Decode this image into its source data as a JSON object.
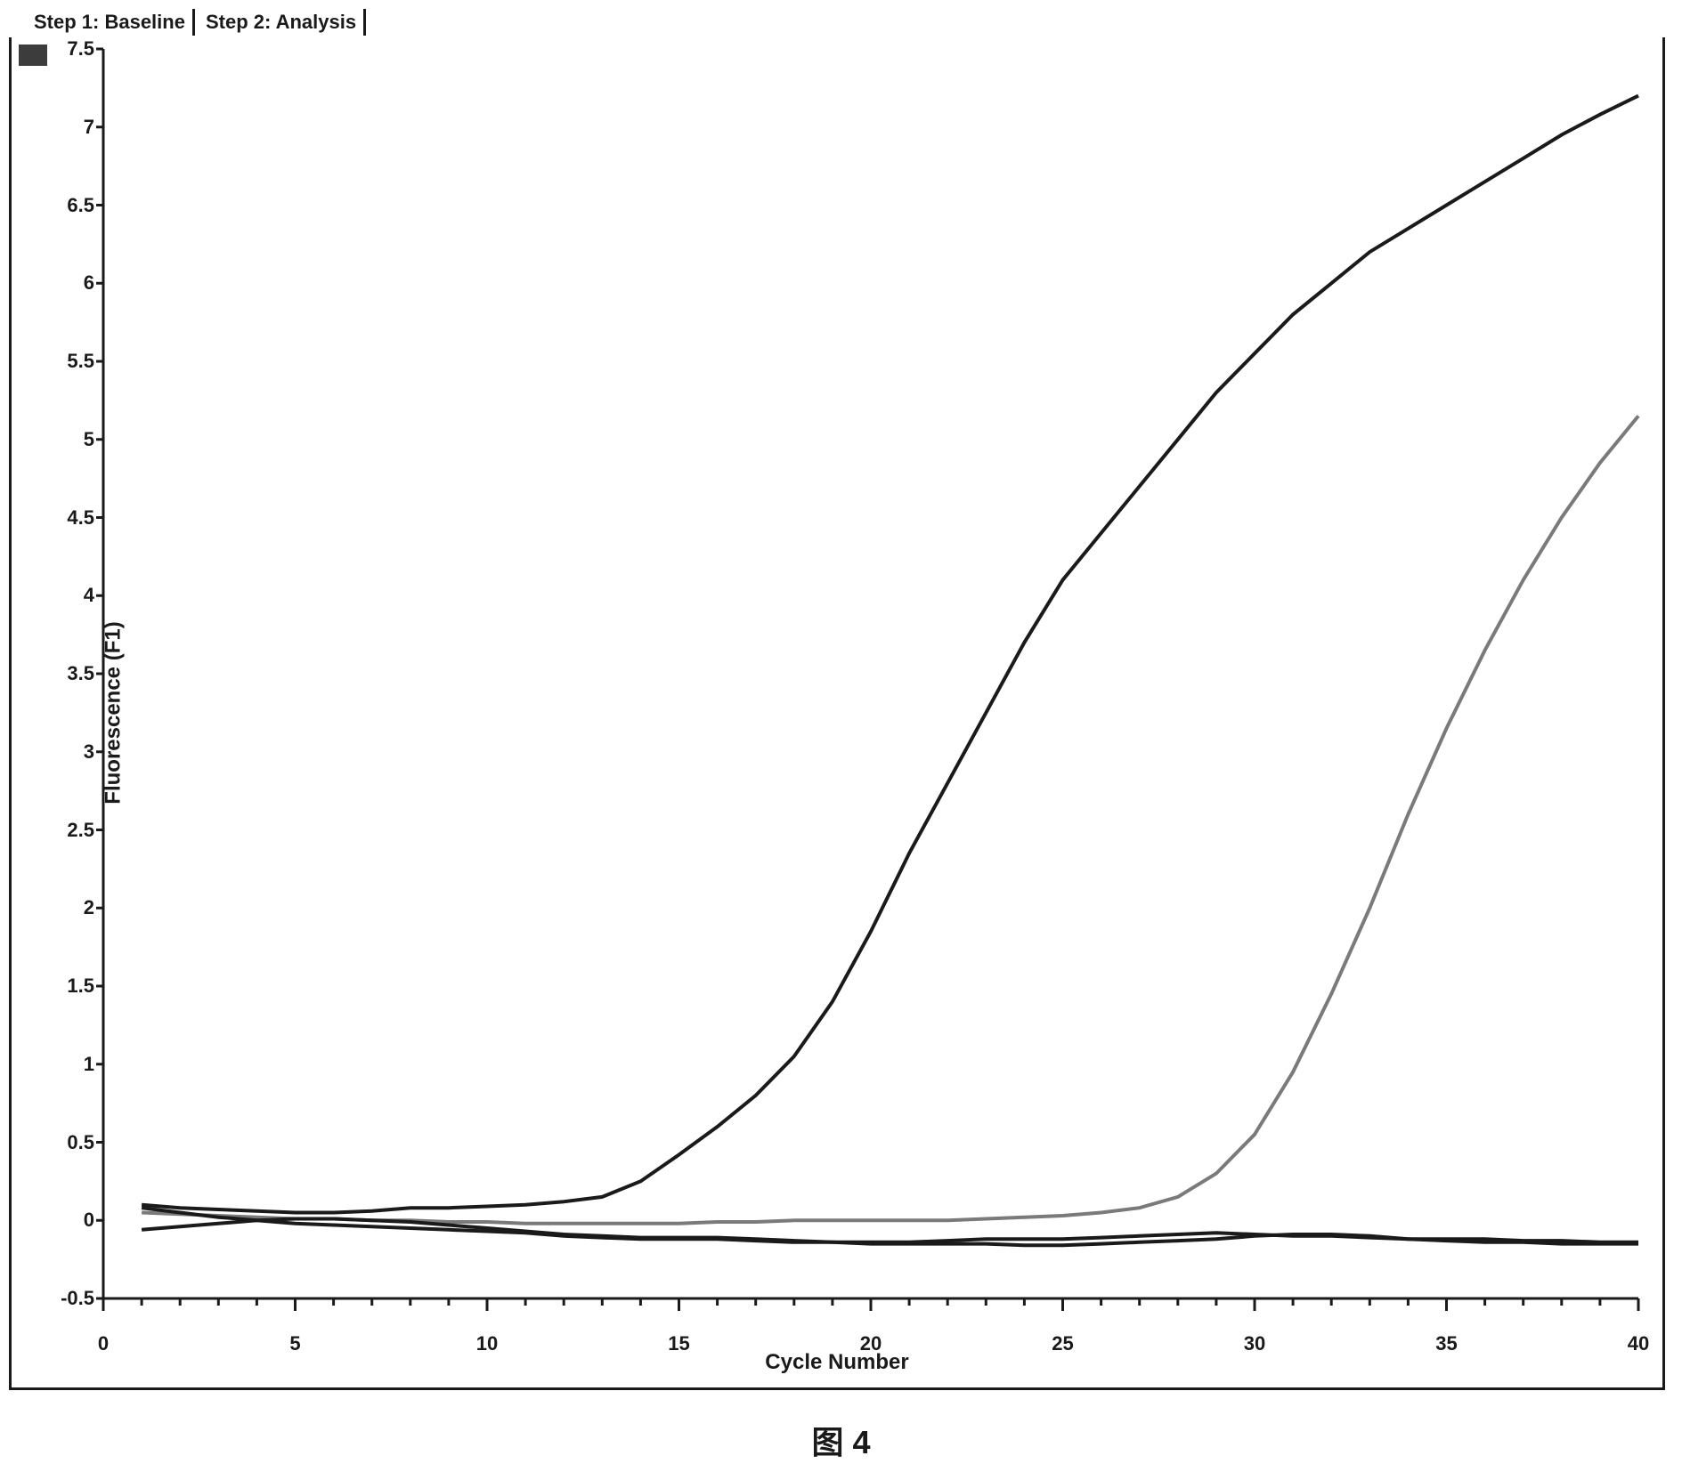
{
  "tabs": {
    "tab1": "Step 1: Baseline",
    "tab2": "Step 2: Analysis"
  },
  "chart": {
    "type": "line",
    "x_label": "Cycle Number",
    "y_label": "Fluorescence (F1)",
    "xlim": [
      0,
      40
    ],
    "ylim": [
      -0.5,
      7.5
    ],
    "x_ticks": [
      0,
      5,
      10,
      15,
      20,
      25,
      30,
      35,
      40
    ],
    "y_ticks": [
      -0.5,
      0,
      0.5,
      1,
      1.5,
      2,
      2.5,
      3,
      3.5,
      4,
      4.5,
      5,
      5.5,
      6,
      6.5,
      7,
      7.5
    ],
    "x_tick_labels": [
      "0",
      "5",
      "10",
      "15",
      "20",
      "25",
      "30",
      "35",
      "40"
    ],
    "y_tick_labels": [
      "-0.5",
      "0",
      "0.5",
      "1",
      "1.5",
      "2",
      "2.5",
      "3",
      "3.5",
      "4",
      "4.5",
      "5",
      "5.5",
      "6",
      "6.5",
      "7",
      "7.5"
    ],
    "x_minor_step": 1,
    "background_color": "#ffffff",
    "axis_color": "#1a1a1a",
    "axis_width": 3,
    "font_size_labels": 24,
    "font_size_ticks": 22,
    "series": [
      {
        "name": "curve1_high",
        "color": "#1a1a1a",
        "width": 4,
        "x": [
          1,
          2,
          3,
          4,
          5,
          6,
          7,
          8,
          9,
          10,
          11,
          12,
          13,
          14,
          15,
          16,
          17,
          18,
          19,
          20,
          21,
          22,
          23,
          24,
          25,
          26,
          27,
          28,
          29,
          30,
          31,
          32,
          33,
          34,
          35,
          36,
          37,
          38,
          39,
          40
        ],
        "y": [
          0.1,
          0.08,
          0.07,
          0.06,
          0.05,
          0.05,
          0.06,
          0.08,
          0.08,
          0.09,
          0.1,
          0.12,
          0.15,
          0.25,
          0.42,
          0.6,
          0.8,
          1.05,
          1.4,
          1.85,
          2.35,
          2.8,
          3.25,
          3.7,
          4.1,
          4.4,
          4.7,
          5.0,
          5.3,
          5.55,
          5.8,
          6.0,
          6.2,
          6.35,
          6.5,
          6.65,
          6.8,
          6.95,
          7.08,
          7.2
        ]
      },
      {
        "name": "curve2_delayed",
        "color": "#7a7a7a",
        "width": 3,
        "x": [
          1,
          2,
          3,
          4,
          5,
          6,
          7,
          8,
          9,
          10,
          11,
          12,
          13,
          14,
          15,
          16,
          17,
          18,
          19,
          20,
          21,
          22,
          23,
          24,
          25,
          26,
          27,
          28,
          29,
          30,
          31,
          32,
          33,
          34,
          35,
          36,
          37,
          38,
          39,
          40
        ],
        "y": [
          0.05,
          0.04,
          0.03,
          0.02,
          0.01,
          0.01,
          0.0,
          0.0,
          -0.01,
          -0.01,
          -0.02,
          -0.02,
          -0.02,
          -0.02,
          -0.02,
          -0.01,
          -0.01,
          0.0,
          0.0,
          0.0,
          0.0,
          0.0,
          0.01,
          0.02,
          0.03,
          0.05,
          0.08,
          0.15,
          0.3,
          0.55,
          0.95,
          1.45,
          2.0,
          2.6,
          3.15,
          3.65,
          4.1,
          4.5,
          4.85,
          5.15
        ]
      },
      {
        "name": "curve3_baseline_a",
        "color": "#1a1a1a",
        "width": 3,
        "x": [
          1,
          2,
          3,
          4,
          5,
          6,
          7,
          8,
          9,
          10,
          11,
          12,
          13,
          14,
          15,
          16,
          17,
          18,
          19,
          20,
          21,
          22,
          23,
          24,
          25,
          26,
          27,
          28,
          29,
          30,
          31,
          32,
          33,
          34,
          35,
          36,
          37,
          38,
          39,
          40
        ],
        "y": [
          0.08,
          0.05,
          0.02,
          0.0,
          -0.02,
          -0.03,
          -0.04,
          -0.05,
          -0.06,
          -0.07,
          -0.08,
          -0.1,
          -0.11,
          -0.12,
          -0.12,
          -0.12,
          -0.13,
          -0.14,
          -0.14,
          -0.15,
          -0.15,
          -0.15,
          -0.15,
          -0.16,
          -0.16,
          -0.15,
          -0.14,
          -0.13,
          -0.12,
          -0.1,
          -0.09,
          -0.09,
          -0.1,
          -0.12,
          -0.13,
          -0.14,
          -0.14,
          -0.15,
          -0.15,
          -0.15
        ]
      },
      {
        "name": "curve4_baseline_b",
        "color": "#1a1a1a",
        "width": 3,
        "x": [
          1,
          2,
          3,
          4,
          5,
          6,
          7,
          8,
          9,
          10,
          11,
          12,
          13,
          14,
          15,
          16,
          17,
          18,
          19,
          20,
          21,
          22,
          23,
          24,
          25,
          26,
          27,
          28,
          29,
          30,
          31,
          32,
          33,
          34,
          35,
          36,
          37,
          38,
          39,
          40
        ],
        "y": [
          -0.06,
          -0.04,
          -0.02,
          0.0,
          0.01,
          0.01,
          0.0,
          -0.01,
          -0.03,
          -0.05,
          -0.07,
          -0.09,
          -0.1,
          -0.11,
          -0.11,
          -0.11,
          -0.12,
          -0.13,
          -0.14,
          -0.14,
          -0.14,
          -0.13,
          -0.12,
          -0.12,
          -0.12,
          -0.11,
          -0.1,
          -0.09,
          -0.08,
          -0.09,
          -0.1,
          -0.1,
          -0.11,
          -0.12,
          -0.12,
          -0.12,
          -0.13,
          -0.13,
          -0.14,
          -0.14
        ]
      }
    ],
    "caption": "图 4"
  }
}
